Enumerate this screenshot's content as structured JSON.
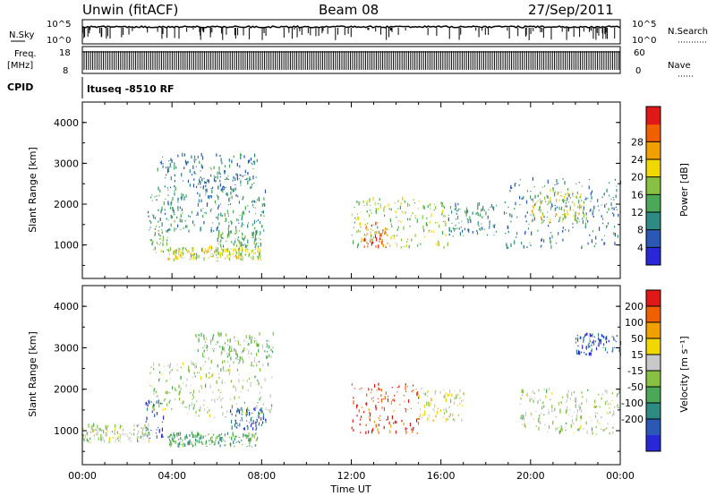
{
  "header": {
    "station": "Unwin (fitACF)",
    "beam": "Beam 08",
    "date": "27/Sep/2011"
  },
  "strips": {
    "nsky_label": "N.Sky",
    "nsky_ticks": [
      "10^5",
      "10^0"
    ],
    "nsearch_label": "N.Search",
    "nsearch_ticks": [
      "10^5",
      "10^0"
    ],
    "freq_label": "Freq.",
    "freq_unit": "[MHz]",
    "freq_ticks": [
      "18",
      "8"
    ],
    "nave_label": "Nave",
    "nave_ticks": [
      "60",
      "0"
    ],
    "cpid_label": "CPID",
    "cpid_text": "ltuseq -8510 RF"
  },
  "chart_data": [
    {
      "type": "heatmap",
      "parameter": "power",
      "ylabel": "Slant Range [km]",
      "xlabel": "",
      "xlim": [
        0,
        24
      ],
      "ylim": [
        180,
        4500
      ],
      "xticks": [
        "00:00",
        "04:00",
        "08:00",
        "12:00",
        "16:00",
        "20:00",
        "00:00"
      ],
      "yticks": [
        1000,
        2000,
        3000,
        4000
      ],
      "colorbar": {
        "label": "Power [dB]",
        "range": [
          0,
          32
        ],
        "ticks": [
          "4",
          "8",
          "12",
          "16",
          "20",
          "24",
          "28"
        ],
        "colors": [
          "#2828d8",
          "#2a58b4",
          "#2e8a82",
          "#4aa858",
          "#88c044",
          "#f0d800",
          "#f0a000",
          "#f06000",
          "#e01818"
        ]
      },
      "regions": [
        {
          "t0": 2.9,
          "t1": 8.2,
          "r0": 1300,
          "r1": 2300,
          "value": 10
        },
        {
          "t0": 3.3,
          "t1": 7.8,
          "r0": 2300,
          "r1": 3200,
          "value": 8
        },
        {
          "t0": 3.0,
          "t1": 3.8,
          "r0": 800,
          "r1": 1400,
          "value": 14
        },
        {
          "t0": 3.8,
          "t1": 8.0,
          "r0": 600,
          "r1": 900,
          "value": 18
        },
        {
          "t0": 6.0,
          "t1": 8.0,
          "r0": 900,
          "r1": 1300,
          "value": 12
        },
        {
          "t0": 12.0,
          "t1": 16.3,
          "r0": 900,
          "r1": 2100,
          "value": 16
        },
        {
          "t0": 12.5,
          "t1": 13.6,
          "r0": 900,
          "r1": 1500,
          "value": 26
        },
        {
          "t0": 16.3,
          "t1": 18.5,
          "r0": 1200,
          "r1": 2000,
          "value": 10
        },
        {
          "t0": 18.8,
          "t1": 24.0,
          "r0": 900,
          "r1": 2600,
          "value": 8
        },
        {
          "t0": 20.0,
          "t1": 22.5,
          "r0": 1500,
          "r1": 2300,
          "value": 18
        }
      ]
    },
    {
      "type": "heatmap",
      "parameter": "velocity",
      "ylabel": "Slant Range [km]",
      "xlabel": "Time UT",
      "xlim": [
        0,
        24
      ],
      "ylim": [
        180,
        4500
      ],
      "xticks": [
        "00:00",
        "04:00",
        "08:00",
        "12:00",
        "16:00",
        "20:00",
        "00:00"
      ],
      "yticks": [
        1000,
        2000,
        3000,
        4000
      ],
      "colorbar": {
        "label": "Velocity [m s⁻¹]",
        "range": [
          -250,
          250
        ],
        "ticks": [
          "200",
          "100",
          "50",
          "15",
          "-15",
          "-50",
          "-100",
          "-200"
        ],
        "colors": [
          "#2828d8",
          "#2a58b4",
          "#2e8a82",
          "#4aa858",
          "#88c044",
          "#c8c8c8",
          "#f0d800",
          "#f0a000",
          "#f06000",
          "#e01818"
        ]
      },
      "regions": [
        {
          "t0": 0.0,
          "t1": 3.0,
          "r0": 700,
          "r1": 1100,
          "value": 0
        },
        {
          "t0": 2.8,
          "t1": 3.6,
          "r0": 800,
          "r1": 1700,
          "value": -200
        },
        {
          "t0": 3.0,
          "t1": 8.5,
          "r0": 1300,
          "r1": 2600,
          "value": 0
        },
        {
          "t0": 5.0,
          "t1": 8.5,
          "r0": 2600,
          "r1": 3300,
          "value": -30
        },
        {
          "t0": 6.5,
          "t1": 8.2,
          "r0": 1000,
          "r1": 1500,
          "value": -180
        },
        {
          "t0": 3.8,
          "t1": 7.8,
          "r0": 600,
          "r1": 900,
          "value": -80
        },
        {
          "t0": 12.0,
          "t1": 15.0,
          "r0": 900,
          "r1": 2100,
          "value": 200
        },
        {
          "t0": 15.0,
          "t1": 17.0,
          "r0": 1200,
          "r1": 2000,
          "value": 40
        },
        {
          "t0": 19.5,
          "t1": 24.0,
          "r0": 900,
          "r1": 2000,
          "value": 0
        },
        {
          "t0": 22.0,
          "t1": 24.0,
          "r0": 2800,
          "r1": 3300,
          "value": -180
        }
      ]
    }
  ]
}
